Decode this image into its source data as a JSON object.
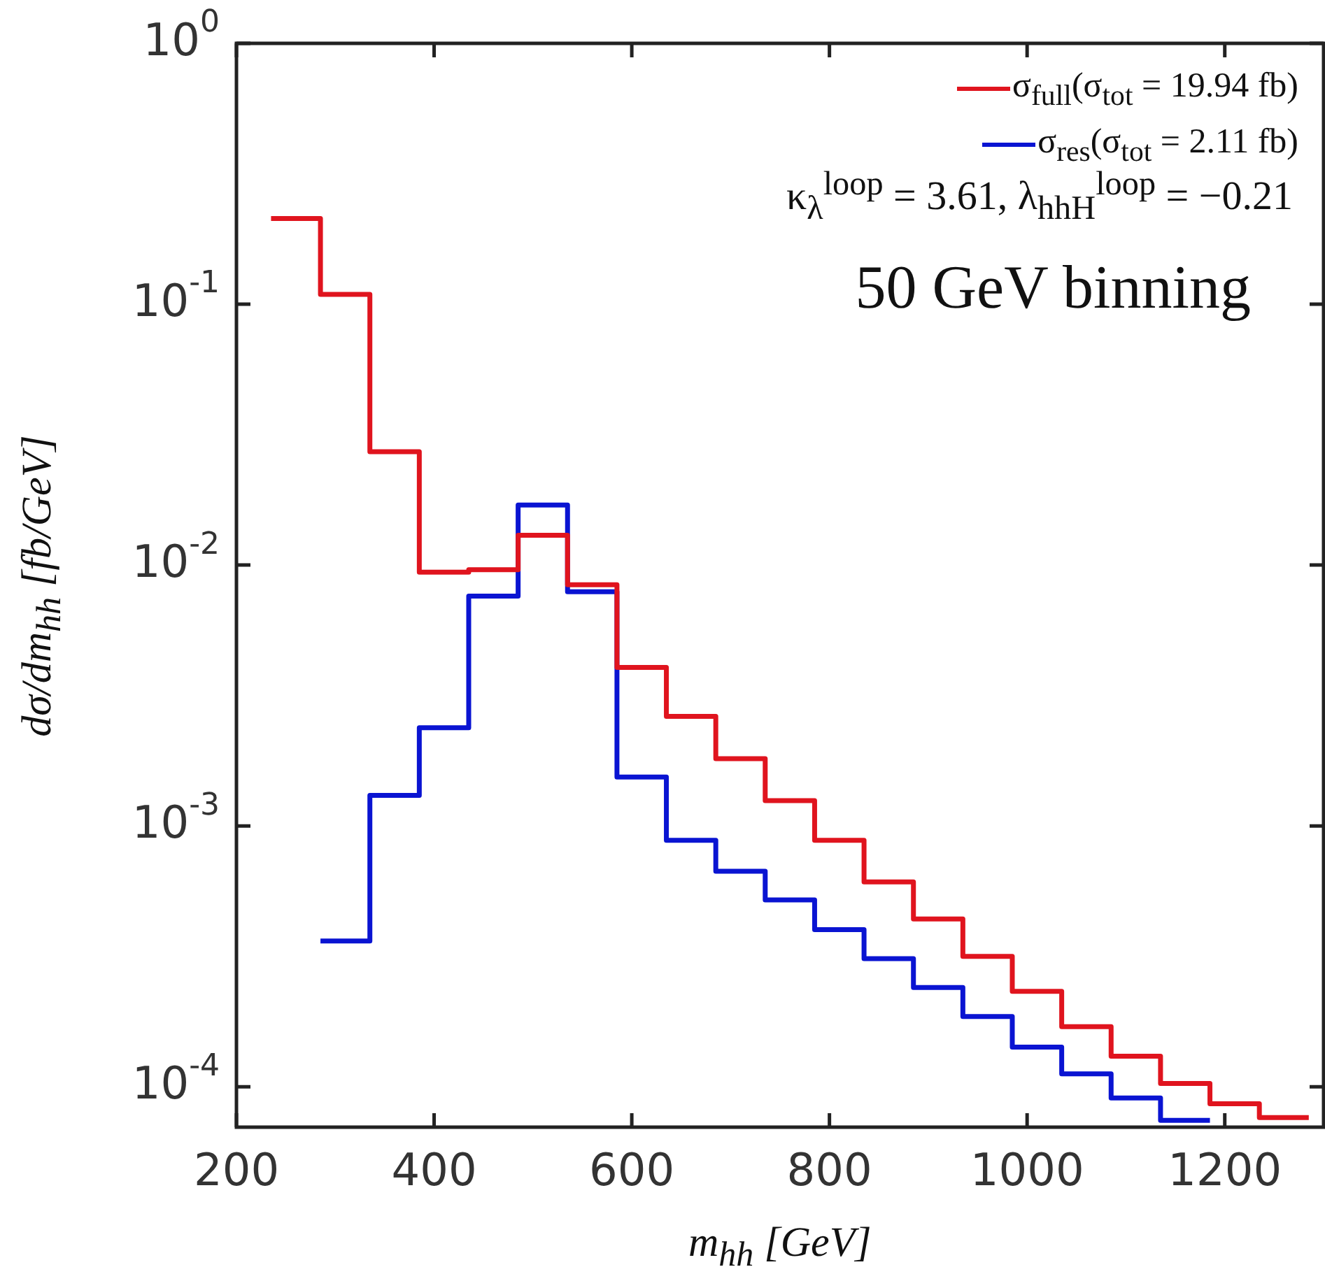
{
  "chart_data": {
    "type": "step",
    "xlabel": "m$_{hh}$ [GeV]",
    "ylabel": "dσ/dm$_{hh}$ [fb/GeV]",
    "annotations": [
      "κ$_{λ}$$^{loop}$ = 3.61, λ$_{hhH}$$^{loop}$ = −0.21",
      "50 GeV binning"
    ],
    "series": [
      {
        "name": "σ$_{full}$(σ$_{tot}$ = 19.94 fb)",
        "color": "#e0141e",
        "x": [
          235,
          285,
          335,
          385,
          435,
          485,
          535,
          585,
          635,
          685,
          735,
          785,
          835,
          885,
          935,
          985,
          1035,
          1085,
          1135,
          1185,
          1235,
          1285
        ],
        "values": [
          0.213,
          0.109,
          0.0272,
          0.0094,
          0.0096,
          0.013,
          0.0084,
          0.00405,
          0.00263,
          0.00181,
          0.00125,
          0.00088,
          0.00061,
          0.00044,
          0.000316,
          0.000232,
          0.00017,
          0.000131,
          0.000103,
          8.61e-05,
          7.62e-05,
          7.62e-05
        ]
      },
      {
        "name": "σ$_{res}$(σ$_{tot}$ = 2.11 fb)",
        "color": "#0a14d2",
        "x": [
          285,
          335,
          385,
          435,
          485,
          535,
          585,
          635,
          685,
          735,
          785,
          835,
          885,
          935,
          985,
          1035,
          1085,
          1135,
          1185
        ],
        "values": [
          0.000362,
          0.00131,
          0.00238,
          0.0076,
          0.017,
          0.0079,
          0.00154,
          0.00088,
          0.00067,
          0.00052,
          0.0004,
          0.00031,
          0.00024,
          0.000186,
          0.000142,
          0.000112,
          9.06e-05,
          7.43e-05,
          7.43e-05
        ]
      }
    ],
    "xlim": [
      200,
      1300
    ],
    "xticks": [
      200,
      400,
      600,
      800,
      1000,
      1200
    ],
    "ylim": [
      7e-05,
      1
    ],
    "yticks": [
      {
        "value": 0.0001,
        "label": "10$^{-4}$"
      },
      {
        "value": 0.001,
        "label": "10$^{-3}$"
      },
      {
        "value": 0.01,
        "label": "10$^{-2}$"
      },
      {
        "value": 0.1,
        "label": "10$^{-1}$"
      },
      {
        "value": 1,
        "label": "10$^{0}$"
      }
    ],
    "log": "y",
    "legend": "top right"
  }
}
